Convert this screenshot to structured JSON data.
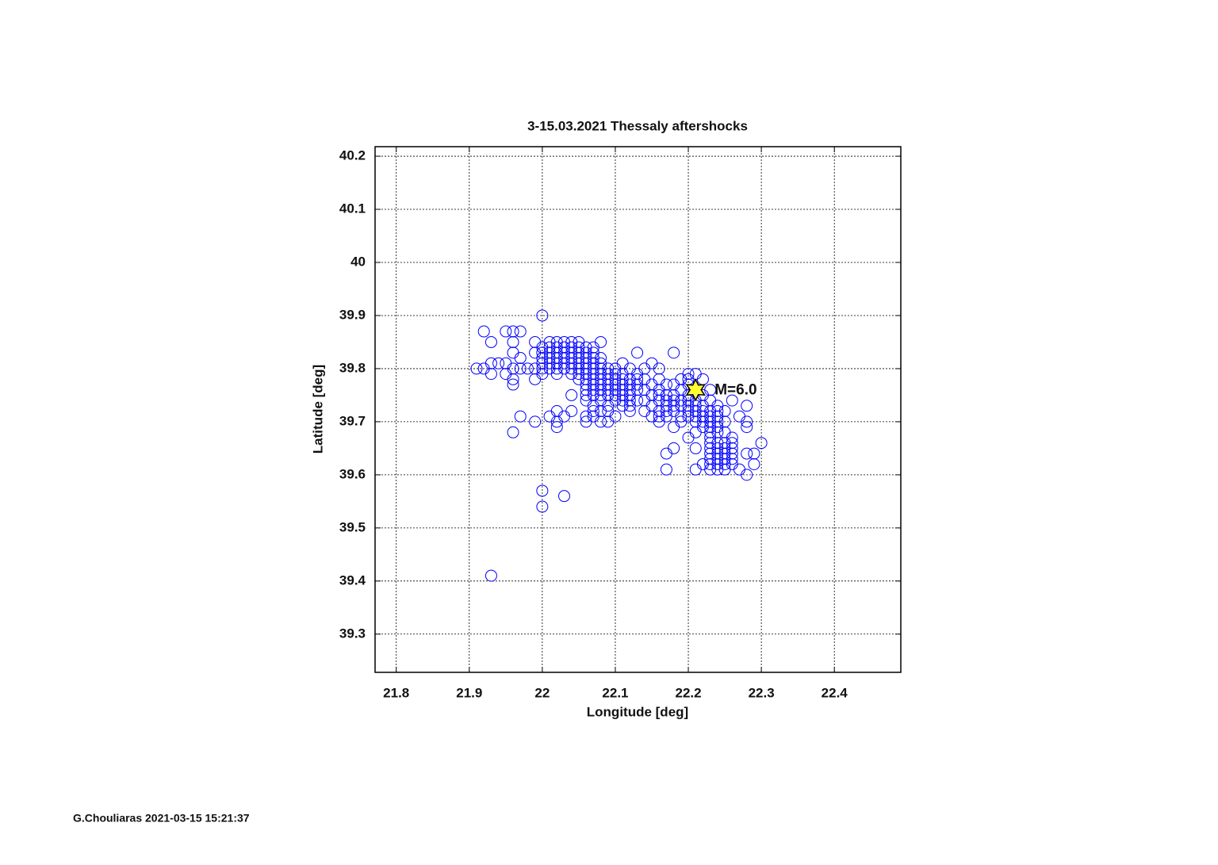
{
  "chart_data": {
    "type": "scatter",
    "title": "3-15.03.2021 Thessaly aftershocks",
    "x_label": "Longitude [deg]",
    "y_label": "Latitude [deg]",
    "color": "#0000ff",
    "grid": true,
    "xlim": [
      21.771,
      22.491
    ],
    "ylim": [
      39.228,
      40.218
    ],
    "xticks": [
      21.8,
      21.9,
      22,
      22.1,
      22.2,
      22.3,
      22.4
    ],
    "yticks": [
      39.3,
      39.4,
      39.5,
      39.6,
      39.7,
      39.8,
      39.9,
      40,
      40.1,
      40.2
    ],
    "x": [
      22.0,
      21.92,
      21.93,
      21.95,
      21.96,
      21.97,
      21.96,
      21.96,
      21.91,
      21.92,
      21.93,
      21.94,
      21.95,
      21.93,
      21.95,
      21.96,
      21.96,
      21.96,
      21.97,
      21.98,
      21.97,
      21.97,
      21.96,
      21.99,
      22.0,
      22.0,
      22.03,
      21.93,
      21.99,
      22.01,
      22.02,
      22.03,
      22.04,
      22.05,
      22.08,
      22.0,
      22.01,
      22.02,
      22.03,
      22.04,
      22.05,
      22.06,
      22.07,
      21.99,
      22.0,
      22.01,
      22.02,
      22.03,
      22.04,
      22.05,
      22.06,
      22.07,
      22.13,
      22.18,
      22.0,
      22.01,
      22.02,
      22.03,
      22.04,
      22.05,
      22.06,
      22.07,
      22.08,
      22.0,
      22.01,
      22.02,
      22.03,
      22.04,
      22.05,
      22.06,
      22.07,
      22.08,
      22.11,
      22.15,
      21.99,
      22.0,
      22.01,
      22.02,
      22.03,
      22.04,
      22.05,
      22.06,
      22.07,
      22.08,
      22.09,
      22.1,
      22.12,
      22.14,
      22.16,
      22.0,
      22.02,
      22.04,
      22.05,
      22.06,
      22.07,
      22.08,
      22.09,
      22.1,
      22.11,
      22.13,
      22.2,
      22.21,
      21.99,
      22.05,
      22.06,
      22.07,
      22.08,
      22.09,
      22.1,
      22.11,
      22.12,
      22.13,
      22.14,
      22.16,
      22.19,
      22.2,
      22.22,
      22.06,
      22.07,
      22.08,
      22.09,
      22.1,
      22.11,
      22.12,
      22.13,
      22.15,
      22.17,
      22.18,
      22.2,
      22.06,
      22.07,
      22.08,
      22.09,
      22.1,
      22.11,
      22.12,
      22.13,
      22.14,
      22.16,
      22.19,
      22.23,
      22.04,
      22.06,
      22.07,
      22.08,
      22.09,
      22.1,
      22.11,
      22.12,
      22.15,
      22.16,
      22.17,
      22.18,
      22.2,
      22.22,
      22.06,
      22.08,
      22.1,
      22.11,
      22.12,
      22.13,
      22.14,
      22.16,
      22.17,
      22.18,
      22.19,
      22.2,
      22.21,
      22.23,
      22.26,
      22.07,
      22.09,
      22.11,
      22.12,
      22.15,
      22.17,
      22.18,
      22.19,
      22.2,
      22.21,
      22.22,
      22.24,
      22.28,
      22.02,
      22.04,
      22.07,
      22.08,
      22.09,
      22.12,
      22.14,
      22.16,
      22.17,
      22.18,
      22.2,
      22.21,
      22.22,
      22.23,
      22.24,
      22.25,
      22.01,
      22.03,
      22.06,
      22.07,
      22.1,
      22.15,
      22.16,
      22.17,
      22.19,
      22.2,
      22.21,
      22.22,
      22.23,
      22.24,
      22.27,
      22.02,
      22.06,
      22.08,
      22.09,
      22.16,
      22.19,
      22.21,
      22.22,
      22.23,
      22.24,
      22.25,
      22.28,
      22.02,
      22.18,
      22.22,
      22.23,
      22.24,
      22.28,
      22.21,
      22.23,
      22.24,
      22.25,
      22.2,
      22.23,
      22.26,
      22.23,
      22.24,
      22.25,
      22.26,
      22.3,
      22.18,
      22.21,
      22.23,
      22.24,
      22.25,
      22.26,
      22.17,
      22.23,
      22.24,
      22.25,
      22.26,
      22.28,
      22.29,
      22.23,
      22.24,
      22.25,
      22.26,
      22.22,
      22.23,
      22.24,
      22.25,
      22.26,
      22.29,
      22.17,
      22.21,
      22.23,
      22.24,
      22.25,
      22.27,
      22.28
    ],
    "values": [
      39.9,
      39.87,
      39.85,
      39.87,
      39.87,
      39.87,
      39.85,
      39.83,
      39.8,
      39.8,
      39.81,
      39.81,
      39.81,
      39.79,
      39.79,
      39.78,
      39.77,
      39.8,
      39.8,
      39.8,
      39.82,
      39.71,
      39.68,
      39.7,
      39.57,
      39.54,
      39.56,
      39.41,
      39.85,
      39.85,
      39.85,
      39.85,
      39.85,
      39.85,
      39.85,
      39.84,
      39.84,
      39.84,
      39.84,
      39.84,
      39.84,
      39.84,
      39.84,
      39.83,
      39.83,
      39.83,
      39.83,
      39.83,
      39.83,
      39.83,
      39.83,
      39.83,
      39.83,
      39.83,
      39.82,
      39.82,
      39.82,
      39.82,
      39.82,
      39.82,
      39.82,
      39.82,
      39.82,
      39.81,
      39.81,
      39.81,
      39.81,
      39.81,
      39.81,
      39.81,
      39.81,
      39.81,
      39.81,
      39.81,
      39.8,
      39.8,
      39.8,
      39.8,
      39.8,
      39.8,
      39.8,
      39.8,
      39.8,
      39.8,
      39.8,
      39.8,
      39.8,
      39.8,
      39.8,
      39.79,
      39.79,
      39.79,
      39.79,
      39.79,
      39.79,
      39.79,
      39.79,
      39.79,
      39.79,
      39.79,
      39.79,
      39.79,
      39.78,
      39.78,
      39.78,
      39.78,
      39.78,
      39.78,
      39.78,
      39.78,
      39.78,
      39.78,
      39.78,
      39.78,
      39.78,
      39.78,
      39.78,
      39.77,
      39.77,
      39.77,
      39.77,
      39.77,
      39.77,
      39.77,
      39.77,
      39.77,
      39.77,
      39.77,
      39.77,
      39.76,
      39.76,
      39.76,
      39.76,
      39.76,
      39.76,
      39.76,
      39.76,
      39.76,
      39.76,
      39.76,
      39.76,
      39.75,
      39.75,
      39.75,
      39.75,
      39.75,
      39.75,
      39.75,
      39.75,
      39.75,
      39.75,
      39.75,
      39.75,
      39.75,
      39.75,
      39.74,
      39.74,
      39.74,
      39.74,
      39.74,
      39.74,
      39.74,
      39.74,
      39.74,
      39.74,
      39.74,
      39.74,
      39.74,
      39.74,
      39.74,
      39.73,
      39.73,
      39.73,
      39.73,
      39.73,
      39.73,
      39.73,
      39.73,
      39.73,
      39.73,
      39.73,
      39.73,
      39.73,
      39.72,
      39.72,
      39.72,
      39.72,
      39.72,
      39.72,
      39.72,
      39.72,
      39.72,
      39.72,
      39.72,
      39.72,
      39.72,
      39.72,
      39.72,
      39.72,
      39.71,
      39.71,
      39.71,
      39.71,
      39.71,
      39.71,
      39.71,
      39.71,
      39.71,
      39.71,
      39.71,
      39.71,
      39.71,
      39.71,
      39.71,
      39.7,
      39.7,
      39.7,
      39.7,
      39.7,
      39.7,
      39.7,
      39.7,
      39.7,
      39.7,
      39.7,
      39.7,
      39.69,
      39.69,
      39.69,
      39.69,
      39.69,
      39.69,
      39.68,
      39.68,
      39.68,
      39.68,
      39.67,
      39.67,
      39.67,
      39.66,
      39.66,
      39.66,
      39.66,
      39.66,
      39.65,
      39.65,
      39.65,
      39.65,
      39.65,
      39.65,
      39.64,
      39.64,
      39.64,
      39.64,
      39.64,
      39.64,
      39.64,
      39.63,
      39.63,
      39.63,
      39.63,
      39.62,
      39.62,
      39.62,
      39.62,
      39.62,
      39.62,
      39.61,
      39.61,
      39.61,
      39.61,
      39.61,
      39.61,
      39.6
    ],
    "mainshock": {
      "x": 22.21,
      "y": 39.76,
      "label": "M=6.0",
      "color": "#ffff33"
    }
  },
  "footer": "G.Chouliaras 2021-03-15 15:21:37"
}
